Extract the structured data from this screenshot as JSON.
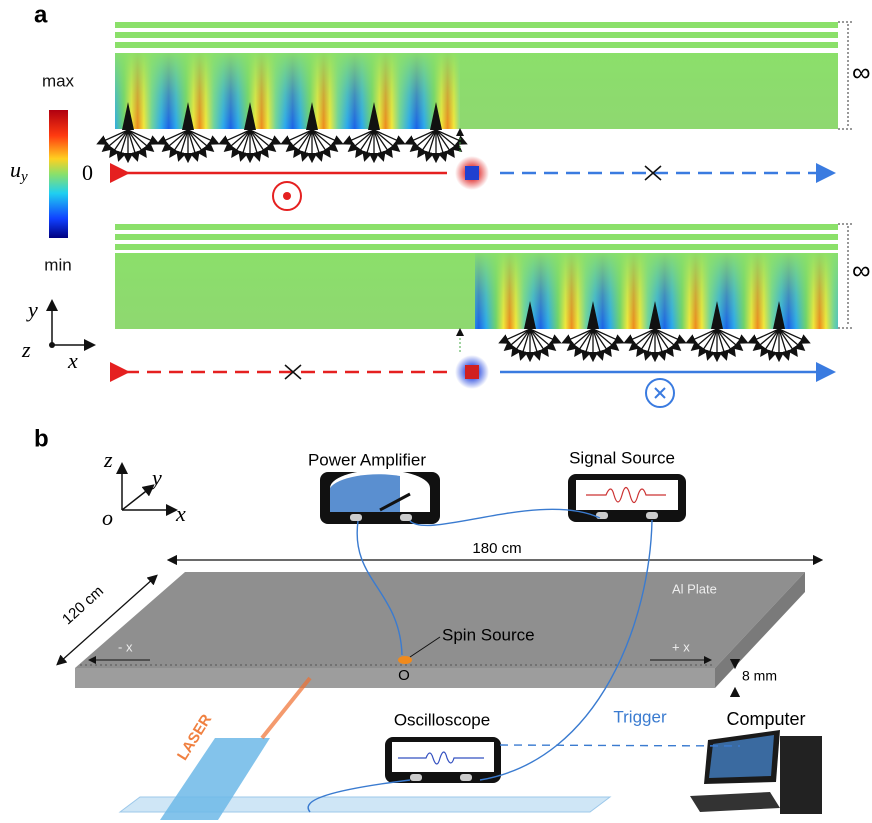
{
  "panel_a": {
    "label": "a",
    "colorbar": {
      "max": "max",
      "zero": "0",
      "min": "min",
      "quantity": "u",
      "subscript": "y"
    },
    "infinity_top": "∞",
    "infinity_bottom": "∞",
    "axes": {
      "y": "y",
      "z": "z",
      "x": "x"
    }
  },
  "panel_b": {
    "label": "b",
    "axes": {
      "z": "z",
      "y": "y",
      "origin": "o",
      "x": "x"
    },
    "power_amplifier": "Power Amplifier",
    "signal_source": "Signal Source",
    "length": "180 cm",
    "width": "120 cm",
    "plate": "Al Plate",
    "minus_x": "- x",
    "plus_x": "+ x",
    "spin_source": "Spin Source",
    "origin": "O",
    "thickness": "8 mm",
    "oscilloscope": "Oscilloscope",
    "trigger": "Trigger",
    "computer": "Computer",
    "laser": "LASER"
  }
}
